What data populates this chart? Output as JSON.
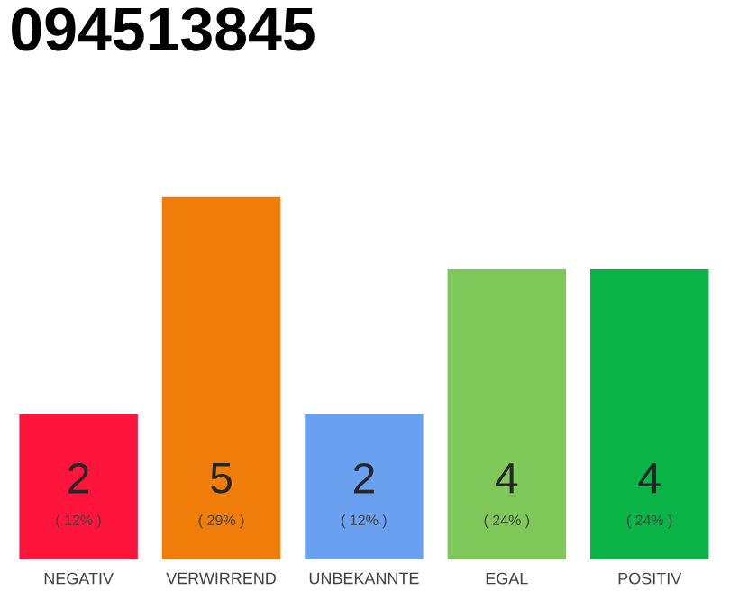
{
  "chart_data": {
    "type": "bar",
    "title": "094513845",
    "categories": [
      "NEGATIV",
      "VERWIRREND",
      "UNBEKANNTE",
      "EGAL",
      "POSITIV"
    ],
    "values": [
      2,
      5,
      2,
      4,
      4
    ],
    "colors": [
      "#ff143c",
      "#f07d0a",
      "#6aa0f0",
      "#7ec85a",
      "#0ab446"
    ],
    "data_labels": true,
    "annotations": [
      "( 12% )",
      "( 29% )",
      "( 12% )",
      "( 24% )",
      "( 24% )"
    ]
  }
}
